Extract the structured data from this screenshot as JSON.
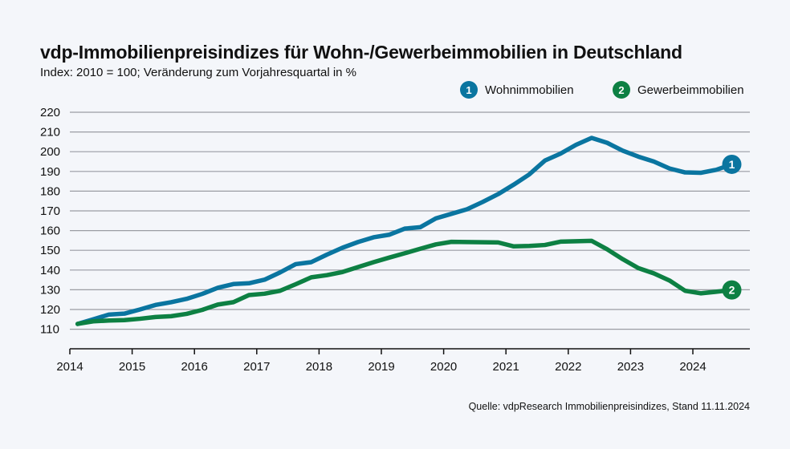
{
  "title": "vdp-Immobilienpreisindizes für Wohn-/Gewerbeimmobilien in Deutschland",
  "subtitle": "Index: 2010 = 100; Veränderung zum Vorjahresquartal in %",
  "source": "Quelle: vdpResearch Immobilienpreisindizes, Stand 11.11.2024",
  "colors": {
    "wohn": "#0a75a0",
    "gewerbe": "#0d8043",
    "background": "#f4f6fa",
    "grid": "#9a9ca3"
  },
  "chart_data": {
    "type": "line",
    "title": "vdp-Immobilienpreisindizes für Wohn-/Gewerbeimmobilien in Deutschland",
    "subtitle": "Index: 2010 = 100; Veränderung zum Vorjahresquartal in %",
    "xlabel": "",
    "ylabel": "",
    "xlim": [
      2014,
      2025
    ],
    "ylim": [
      100,
      220
    ],
    "x_ticks": [
      "2014",
      "2015",
      "2016",
      "2017",
      "2018",
      "2019",
      "2020",
      "2021",
      "2022",
      "2023",
      "2024"
    ],
    "y_ticks": [
      "110",
      "120",
      "130",
      "140",
      "150",
      "160",
      "170",
      "180",
      "190",
      "200",
      "210",
      "220"
    ],
    "grid": "horizontal",
    "legend_position": "top-right",
    "x": [
      "2014Q1",
      "2014Q2",
      "2014Q3",
      "2014Q4",
      "2015Q1",
      "2015Q2",
      "2015Q3",
      "2015Q4",
      "2016Q1",
      "2016Q2",
      "2016Q3",
      "2016Q4",
      "2017Q1",
      "2017Q2",
      "2017Q3",
      "2017Q4",
      "2018Q1",
      "2018Q2",
      "2018Q3",
      "2018Q4",
      "2019Q1",
      "2019Q2",
      "2019Q3",
      "2019Q4",
      "2020Q1",
      "2020Q2",
      "2020Q3",
      "2020Q4",
      "2021Q1",
      "2021Q2",
      "2021Q3",
      "2021Q4",
      "2022Q1",
      "2022Q2",
      "2022Q3",
      "2022Q4",
      "2023Q1",
      "2023Q2",
      "2023Q3",
      "2023Q4",
      "2024Q1",
      "2024Q2",
      "2024Q3"
    ],
    "series": [
      {
        "name": "Wohnimmobilien",
        "marker": "1",
        "color": "#0a75a0",
        "values": [
          112.7,
          115.0,
          117.4,
          117.9,
          120.0,
          122.3,
          123.7,
          125.4,
          127.9,
          131.0,
          132.9,
          133.3,
          135.1,
          138.8,
          143.0,
          144.0,
          147.8,
          151.3,
          154.2,
          156.6,
          157.9,
          161.0,
          161.7,
          166.2,
          168.5,
          170.8,
          174.5,
          178.5,
          183.3,
          188.5,
          195.5,
          199.0,
          203.5,
          207.0,
          204.5,
          200.5,
          197.5,
          195.0,
          191.5,
          189.5,
          189.3,
          190.8,
          193.6
        ]
      },
      {
        "name": "Gewerbeimmobilien",
        "marker": "2",
        "color": "#0d8043",
        "values": [
          112.7,
          114.0,
          114.4,
          114.6,
          115.3,
          116.2,
          116.6,
          117.8,
          119.8,
          122.5,
          123.7,
          127.3,
          128.0,
          129.5,
          132.8,
          136.3,
          137.4,
          139.0,
          141.5,
          144.0,
          146.3,
          148.5,
          150.8,
          153.0,
          154.3,
          154.2,
          154.1,
          154.0,
          152.0,
          152.2,
          152.7,
          154.4,
          154.6,
          154.8,
          150.5,
          145.5,
          141.0,
          138.3,
          134.7,
          129.5,
          128.2,
          129.0,
          129.9
        ]
      }
    ]
  }
}
